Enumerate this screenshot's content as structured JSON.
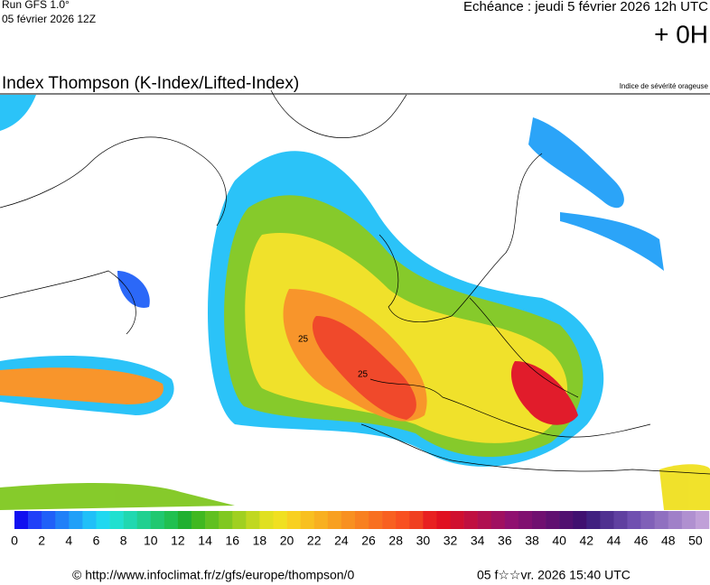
{
  "header": {
    "run": "Run GFS 1.0°",
    "run_date": "05 février 2026 12Z",
    "valid": "Echéance : jeudi 5 février 2026 12h UTC",
    "lead": "+ 0H"
  },
  "title": "Index Thompson (K-Index/Lifted-Index)",
  "subtitle": "Indice de sévérité orageuse",
  "map": {
    "contour_labels": [
      25,
      25
    ]
  },
  "colorbar": {
    "ticks": [
      0,
      2,
      4,
      6,
      8,
      10,
      12,
      14,
      16,
      18,
      20,
      22,
      24,
      26,
      28,
      30,
      32,
      34,
      36,
      38,
      40,
      42,
      44,
      46,
      48,
      50
    ],
    "colors": [
      "#1010f0",
      "#2040f8",
      "#2060f8",
      "#2080f8",
      "#20a0f8",
      "#20c0f8",
      "#20d8f0",
      "#20e0d0",
      "#20d8b0",
      "#20d090",
      "#20c870",
      "#20c050",
      "#20b030",
      "#40b820",
      "#60c020",
      "#80c820",
      "#a0d020",
      "#c0d820",
      "#e0e020",
      "#f0e020",
      "#f8d020",
      "#f8c020",
      "#f8b020",
      "#f8a020",
      "#f89020",
      "#f88020",
      "#f87020",
      "#f86020",
      "#f85020",
      "#f04020",
      "#e82020",
      "#e01020",
      "#d01030",
      "#c01040",
      "#b01050",
      "#a01060",
      "#901070",
      "#801070",
      "#701070",
      "#601070",
      "#501070",
      "#401070",
      "#402080",
      "#503090",
      "#6040a0",
      "#7050b0",
      "#8060b8",
      "#9070c0",
      "#a080c8",
      "#b090d0",
      "#c0a0d8"
    ]
  },
  "footer": {
    "url": "© http://www.infoclimat.fr/z/gfs/europe/thompson/0",
    "generated": "05 f☆☆vr. 2026 15:40 UTC"
  }
}
